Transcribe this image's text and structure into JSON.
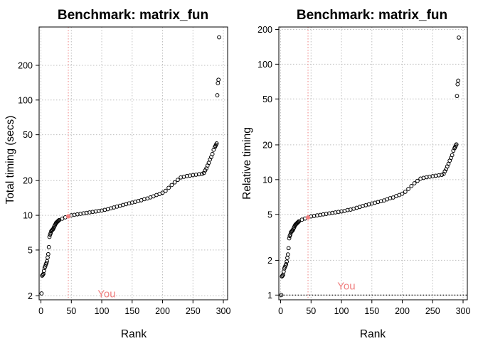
{
  "chart_data": [
    {
      "type": "scatter",
      "title": "Benchmark: matrix_fun",
      "xlabel": "Rank",
      "ylabel": "Total timing (secs)",
      "y_scale": "log",
      "grid": true,
      "xlim": [
        -3,
        307
      ],
      "ylim": [
        1.85,
        430
      ],
      "x_ticks": [
        0,
        50,
        100,
        150,
        200,
        250,
        300
      ],
      "y_ticks": [
        2,
        5,
        10,
        20,
        50,
        100,
        200
      ],
      "highlight_rank": 45,
      "highlight_value": 9.8,
      "annotation": "You",
      "annotation_x": 108,
      "annotation_y": 1.95,
      "series": [
        {
          "values": [
            [
              1,
              2.1
            ],
            [
              2,
              3.0
            ],
            [
              3,
              3.05
            ],
            [
              4,
              3.1
            ],
            [
              5,
              3.3
            ],
            [
              6,
              3.5
            ],
            [
              7,
              3.6
            ],
            [
              8,
              3.75
            ],
            [
              9,
              3.85
            ],
            [
              10,
              4.0
            ],
            [
              11,
              4.3
            ],
            [
              12,
              4.6
            ],
            [
              13,
              5.3
            ],
            [
              14,
              6.5
            ],
            [
              15,
              6.8
            ],
            [
              16,
              7.0
            ],
            [
              17,
              7.3
            ],
            [
              18,
              7.4
            ],
            [
              19,
              7.5
            ],
            [
              20,
              7.6
            ],
            [
              21,
              7.8
            ],
            [
              22,
              8.0
            ],
            [
              23,
              8.2
            ],
            [
              24,
              8.4
            ],
            [
              25,
              8.6
            ],
            [
              26,
              8.7
            ],
            [
              27,
              8.8
            ],
            [
              28,
              8.9
            ],
            [
              29,
              9.0
            ],
            [
              30,
              9.1
            ],
            [
              35,
              9.35
            ],
            [
              40,
              9.6
            ],
            [
              45,
              9.8
            ],
            [
              50,
              10.0
            ],
            [
              55,
              10.1
            ],
            [
              60,
              10.2
            ],
            [
              65,
              10.3
            ],
            [
              70,
              10.4
            ],
            [
              75,
              10.5
            ],
            [
              80,
              10.6
            ],
            [
              85,
              10.7
            ],
            [
              90,
              10.8
            ],
            [
              95,
              10.9
            ],
            [
              100,
              11.0
            ],
            [
              105,
              11.15
            ],
            [
              110,
              11.3
            ],
            [
              115,
              11.5
            ],
            [
              120,
              11.7
            ],
            [
              125,
              11.9
            ],
            [
              130,
              12.1
            ],
            [
              135,
              12.3
            ],
            [
              140,
              12.5
            ],
            [
              145,
              12.7
            ],
            [
              150,
              12.9
            ],
            [
              155,
              13.1
            ],
            [
              160,
              13.3
            ],
            [
              165,
              13.5
            ],
            [
              170,
              13.8
            ],
            [
              175,
              14.0
            ],
            [
              180,
              14.3
            ],
            [
              185,
              14.6
            ],
            [
              190,
              15.0
            ],
            [
              195,
              15.3
            ],
            [
              200,
              15.7
            ],
            [
              205,
              16.3
            ],
            [
              210,
              17.3
            ],
            [
              215,
              18.3
            ],
            [
              220,
              19.3
            ],
            [
              225,
              20.3
            ],
            [
              230,
              21.3
            ],
            [
              235,
              21.6
            ],
            [
              240,
              21.9
            ],
            [
              245,
              22.1
            ],
            [
              250,
              22.3
            ],
            [
              255,
              22.5
            ],
            [
              260,
              22.7
            ],
            [
              265,
              22.9
            ],
            [
              268,
              23.3
            ],
            [
              270,
              24.5
            ],
            [
              272,
              25.5
            ],
            [
              274,
              27.0
            ],
            [
              276,
              28.5
            ],
            [
              278,
              30.5
            ],
            [
              280,
              32.0
            ],
            [
              282,
              34.0
            ],
            [
              284,
              37.0
            ],
            [
              286,
              39.0
            ],
            [
              287,
              40.0
            ],
            [
              288,
              41.0
            ],
            [
              289,
              42.0
            ],
            [
              290,
              110.0
            ],
            [
              291,
              140.0
            ],
            [
              292,
              150.0
            ],
            [
              293,
              350.0
            ]
          ]
        }
      ]
    },
    {
      "type": "scatter",
      "title": "Benchmark: matrix_fun",
      "xlabel": "Rank",
      "ylabel": "Relative timing",
      "y_scale": "log",
      "grid": true,
      "xlim": [
        -3,
        307
      ],
      "ylim": [
        0.91,
        210
      ],
      "x_ticks": [
        0,
        50,
        100,
        150,
        200,
        250,
        300
      ],
      "y_ticks": [
        1,
        2,
        5,
        10,
        20,
        50,
        100,
        200
      ],
      "highlight_rank": 45,
      "highlight_value": 4.7,
      "annotation": "You",
      "annotation_x": 108,
      "annotation_y": 1.12,
      "reference_line": 1,
      "series": [
        {
          "values": [
            [
              1,
              1.0
            ],
            [
              2,
              1.45
            ],
            [
              3,
              1.47
            ],
            [
              4,
              1.5
            ],
            [
              5,
              1.6
            ],
            [
              6,
              1.7
            ],
            [
              7,
              1.75
            ],
            [
              8,
              1.8
            ],
            [
              9,
              1.85
            ],
            [
              10,
              1.95
            ],
            [
              11,
              2.1
            ],
            [
              12,
              2.25
            ],
            [
              13,
              2.55
            ],
            [
              14,
              3.1
            ],
            [
              15,
              3.25
            ],
            [
              16,
              3.35
            ],
            [
              17,
              3.5
            ],
            [
              18,
              3.55
            ],
            [
              19,
              3.6
            ],
            [
              20,
              3.65
            ],
            [
              21,
              3.75
            ],
            [
              22,
              3.85
            ],
            [
              23,
              3.95
            ],
            [
              24,
              4.05
            ],
            [
              25,
              4.1
            ],
            [
              26,
              4.15
            ],
            [
              27,
              4.2
            ],
            [
              28,
              4.25
            ],
            [
              29,
              4.3
            ],
            [
              30,
              4.35
            ],
            [
              35,
              4.5
            ],
            [
              40,
              4.6
            ],
            [
              45,
              4.7
            ],
            [
              50,
              4.8
            ],
            [
              55,
              4.85
            ],
            [
              60,
              4.9
            ],
            [
              65,
              4.95
            ],
            [
              70,
              5.0
            ],
            [
              75,
              5.05
            ],
            [
              80,
              5.1
            ],
            [
              85,
              5.15
            ],
            [
              90,
              5.2
            ],
            [
              95,
              5.25
            ],
            [
              100,
              5.3
            ],
            [
              105,
              5.35
            ],
            [
              110,
              5.45
            ],
            [
              115,
              5.5
            ],
            [
              120,
              5.6
            ],
            [
              125,
              5.7
            ],
            [
              130,
              5.8
            ],
            [
              135,
              5.9
            ],
            [
              140,
              6.0
            ],
            [
              145,
              6.1
            ],
            [
              150,
              6.2
            ],
            [
              155,
              6.3
            ],
            [
              160,
              6.4
            ],
            [
              165,
              6.5
            ],
            [
              170,
              6.6
            ],
            [
              175,
              6.75
            ],
            [
              180,
              6.9
            ],
            [
              185,
              7.0
            ],
            [
              190,
              7.2
            ],
            [
              195,
              7.35
            ],
            [
              200,
              7.55
            ],
            [
              205,
              7.85
            ],
            [
              210,
              8.3
            ],
            [
              215,
              8.8
            ],
            [
              220,
              9.3
            ],
            [
              225,
              9.75
            ],
            [
              230,
              10.2
            ],
            [
              235,
              10.35
            ],
            [
              240,
              10.5
            ],
            [
              245,
              10.6
            ],
            [
              250,
              10.7
            ],
            [
              255,
              10.8
            ],
            [
              260,
              10.9
            ],
            [
              265,
              11.0
            ],
            [
              268,
              11.2
            ],
            [
              270,
              11.8
            ],
            [
              272,
              12.3
            ],
            [
              274,
              13.0
            ],
            [
              276,
              13.7
            ],
            [
              278,
              14.6
            ],
            [
              280,
              15.4
            ],
            [
              282,
              16.3
            ],
            [
              284,
              17.8
            ],
            [
              286,
              18.7
            ],
            [
              287,
              19.2
            ],
            [
              288,
              19.7
            ],
            [
              289,
              20.2
            ],
            [
              290,
              53.0
            ],
            [
              291,
              67.0
            ],
            [
              292,
              72.0
            ],
            [
              293,
              170.0
            ]
          ]
        }
      ]
    }
  ]
}
